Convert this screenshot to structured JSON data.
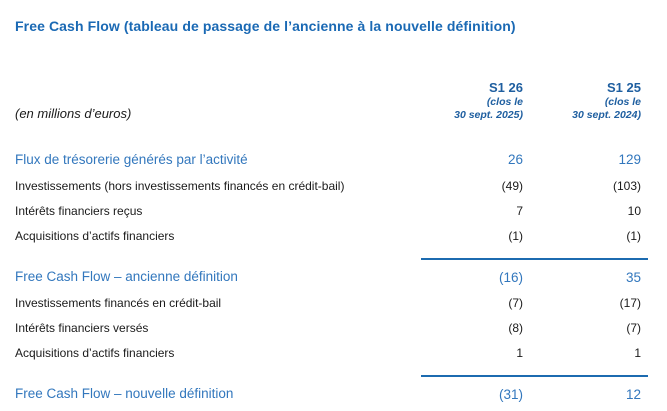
{
  "title": "Free Cash Flow (tableau de passage de l’ancienne à la nouvelle définition)",
  "unit_note": "(en millions d’euros)",
  "columns": [
    {
      "period": "S1 26",
      "note_line1": "(clos le",
      "note_line2": "30 sept. 2025)"
    },
    {
      "period": "S1 25",
      "note_line1": "(clos le",
      "note_line2": "30 sept. 2024)"
    }
  ],
  "rows": [
    {
      "label": "Flux de trésorerie générés par l’activité",
      "values": [
        "26",
        "129"
      ],
      "style": "section"
    },
    {
      "label": "Investissements (hors investissements financés en crédit-bail)",
      "values": [
        "(49)",
        "(103)"
      ],
      "style": "normal"
    },
    {
      "label": "Intérêts financiers reçus",
      "values": [
        "7",
        "10"
      ],
      "style": "normal"
    },
    {
      "label": "Acquisitions d’actifs financiers",
      "values": [
        "(1)",
        "(1)"
      ],
      "style": "normal"
    },
    {
      "label": "Free Cash Flow – ancienne définition",
      "values": [
        "(16)",
        "35"
      ],
      "style": "total"
    },
    {
      "label": "Investissements financés en crédit-bail",
      "values": [
        "(7)",
        "(17)"
      ],
      "style": "normal"
    },
    {
      "label": "Intérêts financiers versés",
      "values": [
        "(8)",
        "(7)"
      ],
      "style": "normal"
    },
    {
      "label": "Acquisitions d’actifs financiers",
      "values": [
        "1",
        "1"
      ],
      "style": "normal"
    },
    {
      "label": "Free Cash Flow – nouvelle définition",
      "values": [
        "(31)",
        "12"
      ],
      "style": "total"
    }
  ],
  "colors": {
    "title_blue": "#1a69b4",
    "header_blue": "#1f5fa0",
    "section_blue": "#3277bd",
    "rule_blue": "#1c6bb0",
    "body_text": "#1a1a1a",
    "background": "#ffffff"
  }
}
